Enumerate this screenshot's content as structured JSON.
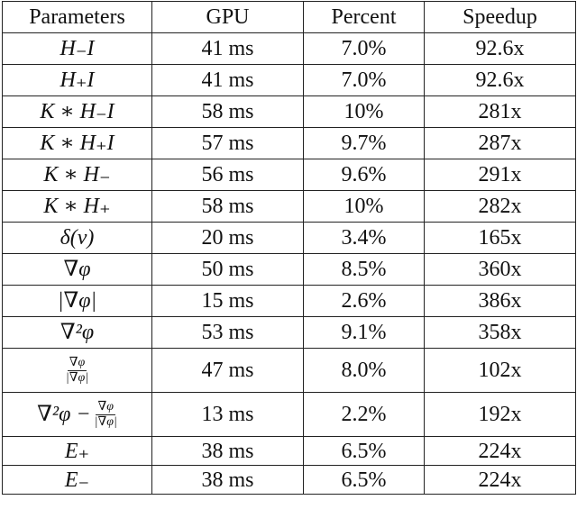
{
  "table": {
    "header": [
      "Parameters",
      "GPU",
      "Percent",
      "Speedup"
    ],
    "rows": [
      [
        "H₋I",
        "41 ms",
        "7.0%",
        "92.6x"
      ],
      [
        "H₊I",
        "41 ms",
        "7.0%",
        "92.6x"
      ],
      [
        "K ∗ H₋I",
        "58 ms",
        "10%",
        "281x"
      ],
      [
        "K ∗ H₊I",
        "57 ms",
        "9.7%",
        "287x"
      ],
      [
        "K ∗ H₋",
        "56 ms",
        "9.6%",
        "291x"
      ],
      [
        "K ∗ H₊",
        "58 ms",
        "10%",
        "282x"
      ],
      [
        "δ(ν)",
        "20 ms",
        "3.4%",
        "165x"
      ],
      [
        "∇φ",
        "50 ms",
        "8.5%",
        "360x"
      ],
      [
        "|∇φ|",
        "15 ms",
        "2.6%",
        "386x"
      ],
      [
        "∇²φ",
        "53 ms",
        "9.1%",
        "358x"
      ],
      [
        {
          "num": "∇φ",
          "den": "|∇φ|"
        },
        "47 ms",
        "8.0%",
        "102x"
      ],
      [
        {
          "lead": "∇²φ −",
          "num": "∇φ",
          "den": "|∇φ|"
        },
        "13 ms",
        "2.2%",
        "192x"
      ],
      [
        "E₊",
        "38 ms",
        "6.5%",
        "224x"
      ],
      [
        "E₋",
        "38 ms",
        "6.5%",
        "224x"
      ]
    ]
  }
}
